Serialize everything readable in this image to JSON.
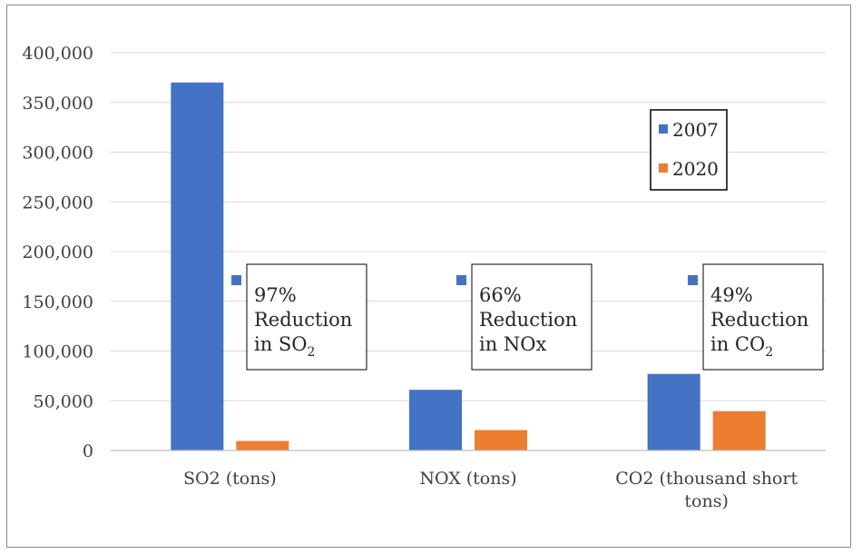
{
  "chart_data": {
    "type": "bar",
    "categories": [
      "SO2 (tons)",
      "NOX (tons)",
      "CO2 (thousand short tons)"
    ],
    "category_lines": [
      [
        "SO2 (tons)"
      ],
      [
        "NOX (tons)"
      ],
      [
        "CO2 (thousand short",
        "tons)"
      ]
    ],
    "series": [
      {
        "name": "2007",
        "color": "#4472C4",
        "values": [
          370000,
          61000,
          77000
        ]
      },
      {
        "name": "2020",
        "color": "#ED7D31",
        "values": [
          9500,
          20500,
          39500
        ]
      }
    ],
    "ylim": [
      0,
      400000
    ],
    "yticks": [
      0,
      50000,
      100000,
      150000,
      200000,
      250000,
      300000,
      350000,
      400000
    ],
    "ytick_labels": [
      "0",
      "50,000",
      "100,000",
      "150,000",
      "200,000",
      "250,000",
      "300,000",
      "350,000",
      "400,000"
    ],
    "grid": true,
    "legend_position": "top-right",
    "annotations": [
      {
        "lines": [
          "97%",
          "Reduction"
        ],
        "last_prefix": "in SO",
        "last_sub": "2"
      },
      {
        "lines": [
          "66%",
          "Reduction"
        ],
        "last_prefix": "in NOx",
        "last_sub": ""
      },
      {
        "lines": [
          "49%",
          "Reduction"
        ],
        "last_prefix": "in CO",
        "last_sub": "2"
      }
    ],
    "annotation_marker_color": "#4472C4"
  }
}
